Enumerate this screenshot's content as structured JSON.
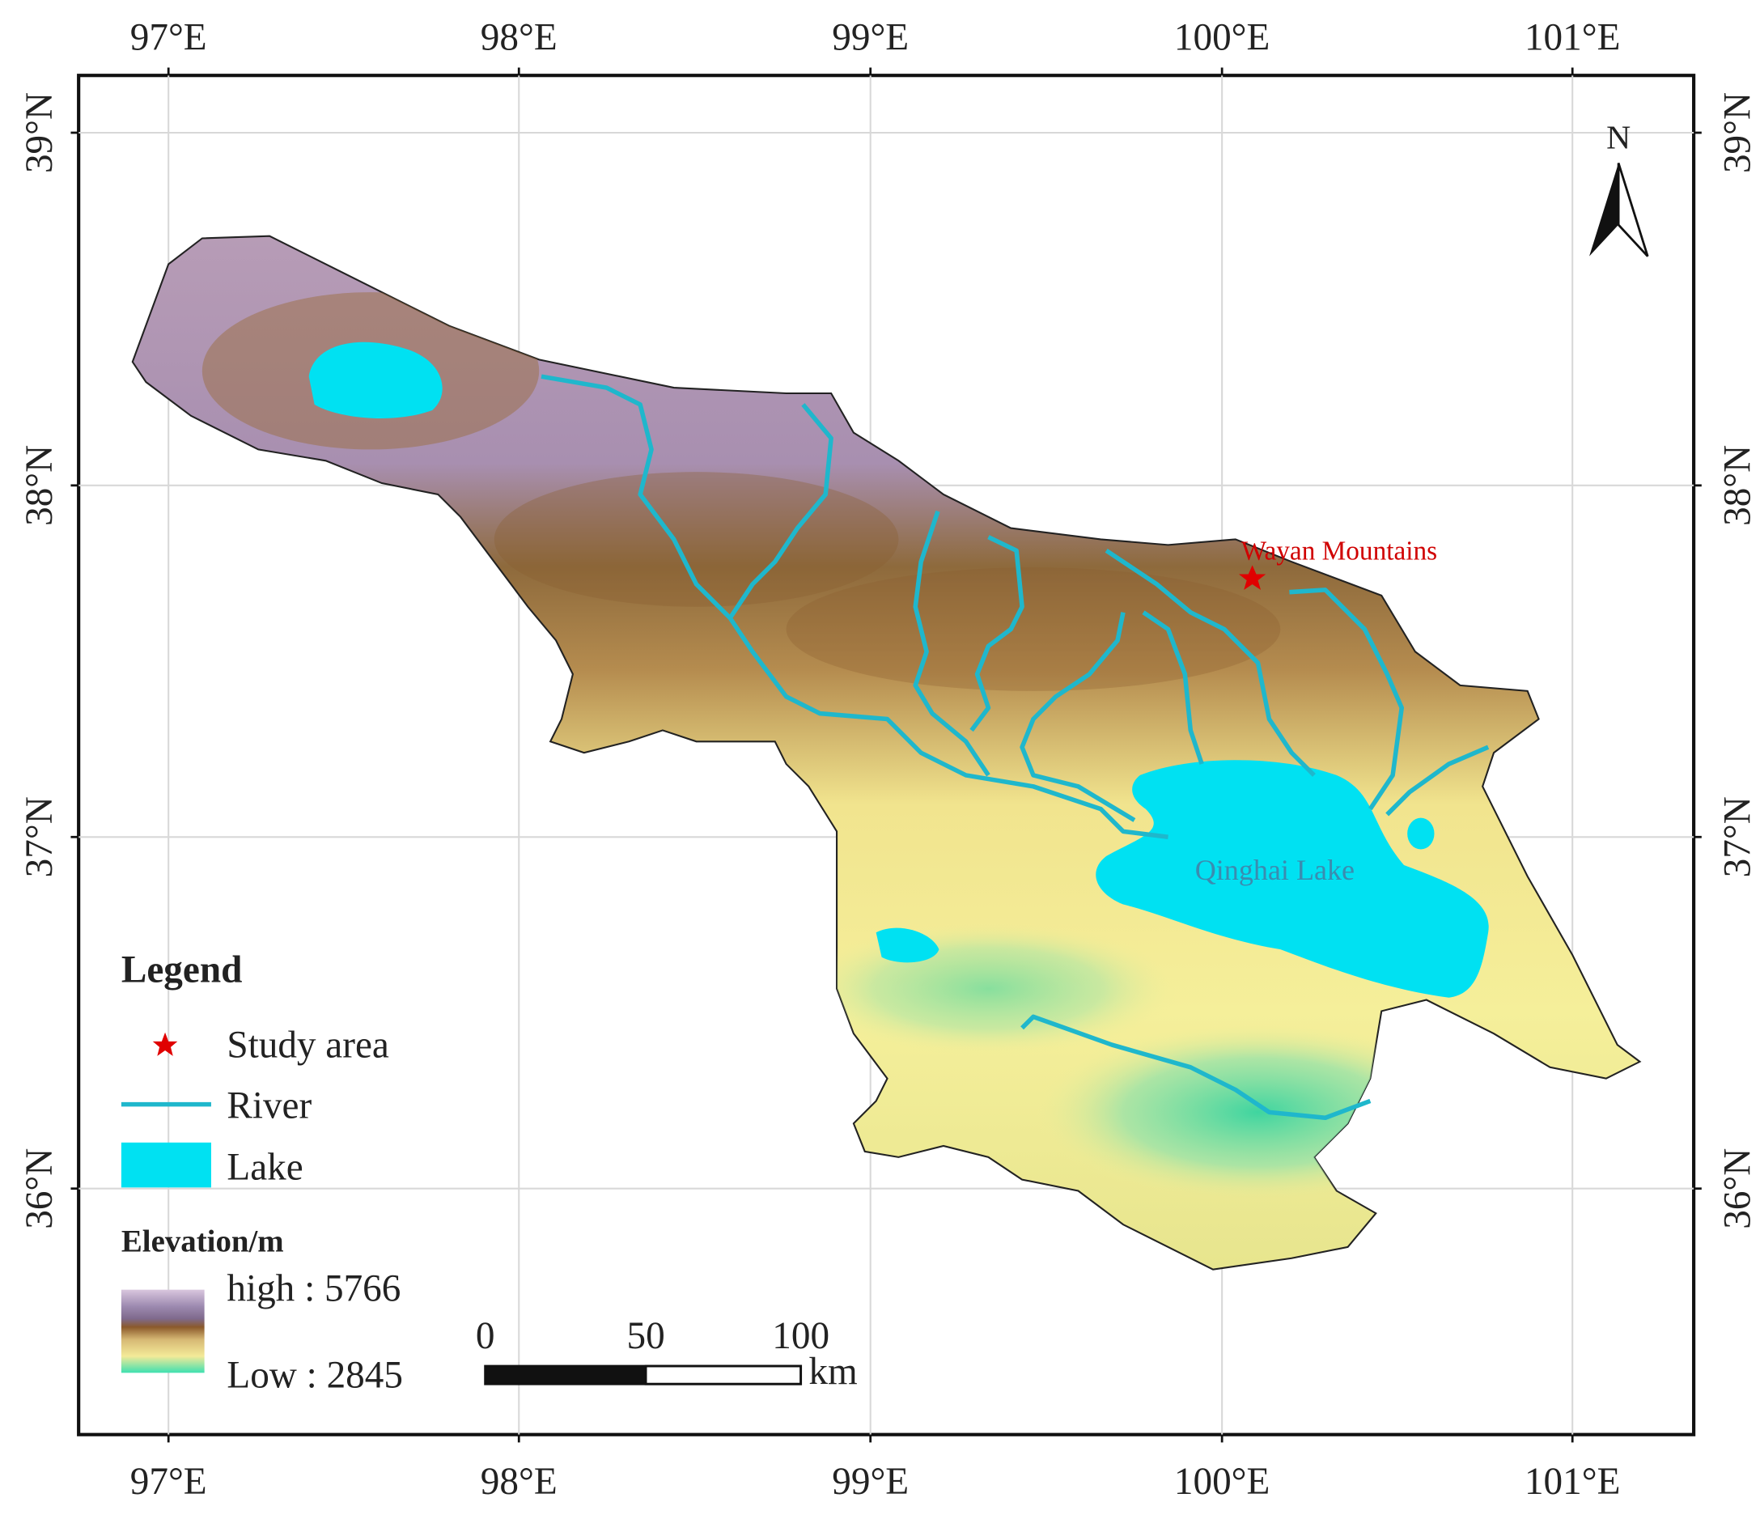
{
  "map": {
    "longitude_labels": [
      "97°E",
      "98°E",
      "99°E",
      "100°E",
      "101°E"
    ],
    "latitude_labels": [
      "39°N",
      "38°N",
      "37°N",
      "36°N"
    ],
    "north_label": "N",
    "annotations": {
      "study_site": "Wayan Mountains",
      "lake": "Qinghai Lake"
    },
    "legend": {
      "title": "Legend",
      "items": [
        "Study area",
        "River",
        "Lake"
      ],
      "elevation_title": "Elevation/m",
      "elevation_high": "high : 5766",
      "elevation_low": "Low : 2845"
    },
    "scale_bar": {
      "ticks": [
        "0",
        "50",
        "100"
      ],
      "unit": "km"
    }
  }
}
